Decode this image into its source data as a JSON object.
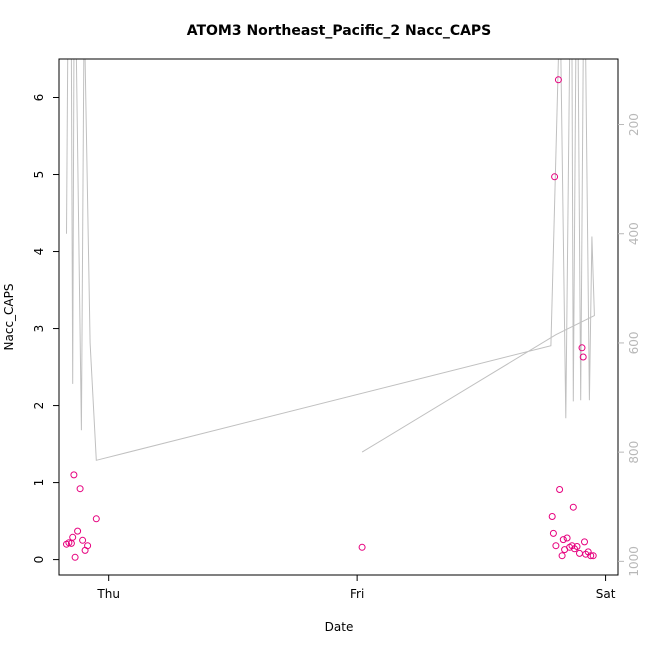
{
  "chart_data": {
    "type": "scatter",
    "title": "ATOM3 Northeast_Pacific_2 Nacc_CAPS",
    "xlabel": "Date",
    "ylabel": "Nacc_CAPS",
    "x_ticks": [
      "Thu",
      "Fri",
      "Sat"
    ],
    "x_tick_values": [
      0,
      1,
      2
    ],
    "xlim": [
      -0.2,
      2.05
    ],
    "y_ticks": [
      "0",
      "1",
      "2",
      "3",
      "4",
      "5",
      "6"
    ],
    "ylim": [
      -0.2,
      6.5
    ],
    "y2_ticks": [
      "200",
      "400",
      "600",
      "800",
      "1000"
    ],
    "y2lim": [
      1025,
      80
    ],
    "grid": false,
    "legend": "none",
    "colors": {
      "points": "#e6007e",
      "line": "#c0c0c0",
      "axis": "#000000",
      "axis2": "#b8b8b8"
    },
    "series": [
      {
        "type": "points",
        "axis": "left",
        "points": [
          {
            "x": -0.17,
            "y": 0.2
          },
          {
            "x": -0.16,
            "y": 0.22
          },
          {
            "x": -0.15,
            "y": 0.21
          },
          {
            "x": -0.145,
            "y": 0.29
          },
          {
            "x": -0.14,
            "y": 1.1
          },
          {
            "x": -0.135,
            "y": 0.03
          },
          {
            "x": -0.125,
            "y": 0.37
          },
          {
            "x": -0.115,
            "y": 0.92
          },
          {
            "x": -0.105,
            "y": 0.25
          },
          {
            "x": -0.095,
            "y": 0.12
          },
          {
            "x": -0.085,
            "y": 0.18
          },
          {
            "x": -0.05,
            "y": 0.53
          },
          {
            "x": 1.02,
            "y": 0.16
          },
          {
            "x": 1.785,
            "y": 0.56
          },
          {
            "x": 1.79,
            "y": 0.34
          },
          {
            "x": 1.795,
            "y": 4.97
          },
          {
            "x": 1.8,
            "y": 0.18
          },
          {
            "x": 1.81,
            "y": 6.23
          },
          {
            "x": 1.815,
            "y": 0.91
          },
          {
            "x": 1.825,
            "y": 0.05
          },
          {
            "x": 1.83,
            "y": 0.26
          },
          {
            "x": 1.835,
            "y": 0.13
          },
          {
            "x": 1.845,
            "y": 0.28
          },
          {
            "x": 1.855,
            "y": 0.16
          },
          {
            "x": 1.865,
            "y": 0.18
          },
          {
            "x": 1.87,
            "y": 0.68
          },
          {
            "x": 1.875,
            "y": 0.14
          },
          {
            "x": 1.885,
            "y": 0.17
          },
          {
            "x": 1.895,
            "y": 0.08
          },
          {
            "x": 1.905,
            "y": 2.75
          },
          {
            "x": 1.91,
            "y": 2.63
          },
          {
            "x": 1.915,
            "y": 0.23
          },
          {
            "x": 1.92,
            "y": 0.07
          },
          {
            "x": 1.93,
            "y": 0.1
          },
          {
            "x": 1.94,
            "y": 0.05
          },
          {
            "x": 1.95,
            "y": 0.05
          }
        ]
      },
      {
        "type": "line",
        "axis": "right",
        "points": [
          {
            "x": -0.17,
            "y": 400
          },
          {
            "x": -0.165,
            "y": 80
          },
          {
            "x": -0.15,
            "y": 80
          },
          {
            "x": -0.145,
            "y": 675
          },
          {
            "x": -0.14,
            "y": 80
          },
          {
            "x": -0.13,
            "y": 80
          },
          {
            "x": -0.11,
            "y": 760
          },
          {
            "x": -0.1,
            "y": 80
          },
          {
            "x": -0.095,
            "y": 80
          },
          {
            "x": -0.075,
            "y": 600
          },
          {
            "x": -0.05,
            "y": 815
          },
          {
            "x": 1.78,
            "y": 605
          },
          {
            "x": 1.81,
            "y": 80
          },
          {
            "x": 1.82,
            "y": 80
          },
          {
            "x": 1.84,
            "y": 738
          },
          {
            "x": 1.855,
            "y": 80
          },
          {
            "x": 1.865,
            "y": 80
          },
          {
            "x": 1.87,
            "y": 707
          },
          {
            "x": 1.88,
            "y": 80
          },
          {
            "x": 1.89,
            "y": 80
          },
          {
            "x": 1.9,
            "y": 705
          },
          {
            "x": 1.91,
            "y": 80
          },
          {
            "x": 1.92,
            "y": 80
          },
          {
            "x": 1.935,
            "y": 705
          },
          {
            "x": 1.945,
            "y": 405
          },
          {
            "x": 1.955,
            "y": 550
          },
          {
            "x": 1.8,
            "y": 585
          },
          {
            "x": 1.02,
            "y": 800
          }
        ]
      }
    ]
  }
}
